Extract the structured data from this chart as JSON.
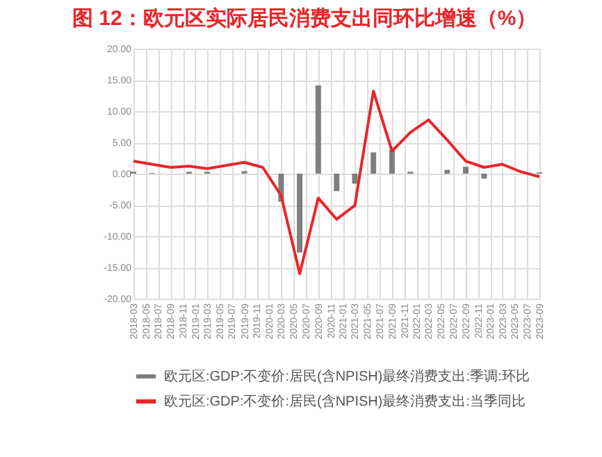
{
  "chart_data": {
    "type": "bar",
    "title": "图 12：欧元区实际居民消费支出同环比增速（%）",
    "x": [
      "2018-03",
      "2018-06",
      "2018-09",
      "2018-12",
      "2019-03",
      "2019-06",
      "2019-09",
      "2019-12",
      "2020-03",
      "2020-06",
      "2020-09",
      "2020-12",
      "2021-03",
      "2021-06",
      "2021-09",
      "2021-12",
      "2022-03",
      "2022-06",
      "2022-09",
      "2022-12",
      "2023-03",
      "2023-06",
      "2023-09"
    ],
    "series": [
      {
        "name": "欧元区:GDP:不变价:居民(含NPISH)最终消费支出:季调:环比",
        "color": "#7f7f7f",
        "values": [
          0.3,
          0.1,
          0.0,
          0.3,
          0.3,
          0.0,
          0.4,
          0.0,
          -4.5,
          -12.6,
          14.1,
          -2.8,
          -1.6,
          3.4,
          3.8,
          0.3,
          0.0,
          0.6,
          1.1,
          -0.8,
          0.0,
          0.0,
          0.2
        ]
      },
      {
        "name": "欧元区:GDP:不变价:居民(含NPISH)最终消费支出:当季同比",
        "type": "line",
        "color": "#e8262a",
        "values": [
          2.0,
          1.5,
          1.0,
          1.2,
          0.8,
          1.3,
          1.8,
          1.0,
          -3.5,
          -16.0,
          -3.9,
          -7.3,
          -5.1,
          13.2,
          3.6,
          6.6,
          8.6,
          5.4,
          2.0,
          1.0,
          1.5,
          0.3,
          -0.5
        ]
      }
    ],
    "xlim": [
      "2018-03",
      "2023-09"
    ],
    "xticks": [
      "2018-03",
      "2018-05",
      "2018-07",
      "2018-09",
      "2018-11",
      "2019-01",
      "2019-03",
      "2019-05",
      "2019-07",
      "2019-09",
      "2019-11",
      "2020-01",
      "2020-03",
      "2020-05",
      "2020-07",
      "2020-09",
      "2020-11",
      "2021-01",
      "2021-03",
      "2021-05",
      "2021-07",
      "2021-09",
      "2021-11",
      "2022-01",
      "2022-03",
      "2022-05",
      "2022-07",
      "2022-09",
      "2022-11",
      "2023-01",
      "2023-03",
      "2023-05",
      "2023-07",
      "2023-09"
    ],
    "ylim": [
      -20,
      20
    ],
    "yticks": [
      {
        "value": -20,
        "label": "-20.00"
      },
      {
        "value": -15,
        "label": "-15.00"
      },
      {
        "value": -10,
        "label": "-10.00"
      },
      {
        "value": -5,
        "label": "-5.00"
      },
      {
        "value": 0,
        "label": "0.00"
      },
      {
        "value": 5,
        "label": "5.00"
      },
      {
        "value": 10,
        "label": "10.00"
      },
      {
        "value": 15,
        "label": "15.00"
      },
      {
        "value": 20,
        "label": "20.00"
      }
    ],
    "grid": true,
    "legend": "bottom"
  }
}
